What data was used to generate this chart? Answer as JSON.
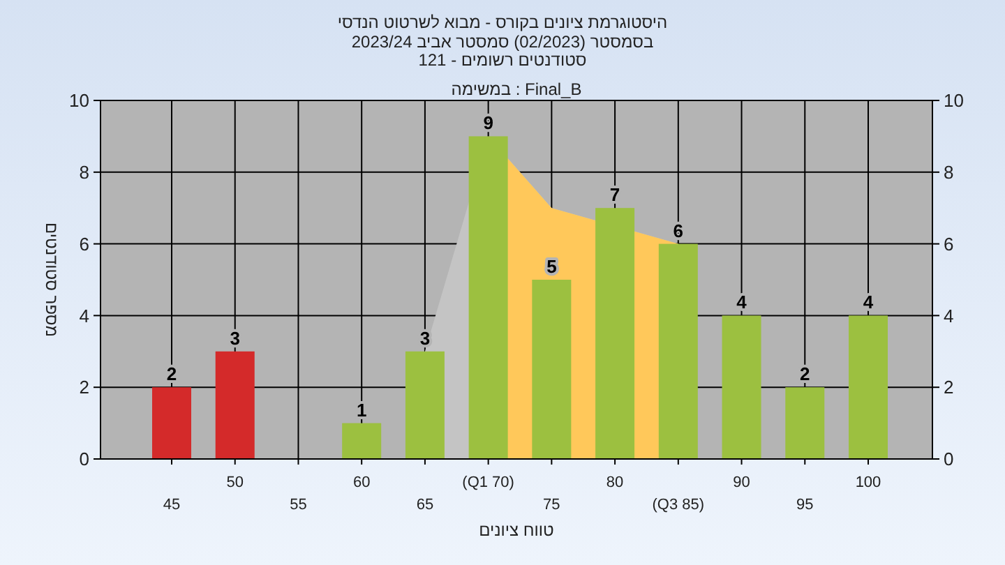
{
  "chart_data": {
    "type": "bar",
    "title": "היסטוגרמת ציונים בקורס - מבוא לשרטוט הנדסי",
    "subtitle": "בסמסטר  (02/2023)  סמסטר אביב 2023/24\nסטודנטים רשומים - 121",
    "xlabel": "טווח ציונים",
    "ylabel": "מספר סטודנטים",
    "annotations": [
      "במשימה : Final_B"
    ],
    "categories": [
      "45",
      "50",
      "55",
      "60",
      "65",
      "(Q1 70)",
      "75",
      "80",
      "(Q3 85)",
      "90",
      "95",
      "100"
    ],
    "series": [
      {
        "type": "area",
        "color": "#c4c4c4",
        "values": [
          null,
          null,
          null,
          null,
          3,
          9,
          7,
          null,
          6,
          null,
          null,
          null
        ]
      },
      {
        "type": "area",
        "color": "#ffc85a",
        "values": [
          null,
          null,
          null,
          null,
          null,
          9,
          7,
          null,
          6,
          null,
          null,
          null
        ]
      },
      {
        "colors": [
          "#d42a2a",
          "#d42a2a",
          null,
          "#9cc040",
          "#9cc040",
          "#9cc040",
          "#9cc040",
          "#9cc040",
          "#9cc040",
          "#9cc040",
          "#9cc040",
          "#9cc040"
        ],
        "values": [
          2,
          3,
          null,
          1,
          3,
          9,
          5,
          7,
          6,
          4,
          2,
          4
        ]
      }
    ],
    "value_labels": [
      "2",
      "3",
      null,
      "1",
      "3",
      "9",
      "5",
      "7",
      "6",
      "4",
      "2",
      "4"
    ],
    "ylim": [
      0,
      10
    ],
    "yticks": [
      0,
      2,
      4,
      6,
      8,
      10
    ],
    "y2lim": [
      0,
      10
    ],
    "y2ticks": [
      0,
      2,
      4,
      6,
      8,
      10
    ],
    "grid": true
  }
}
